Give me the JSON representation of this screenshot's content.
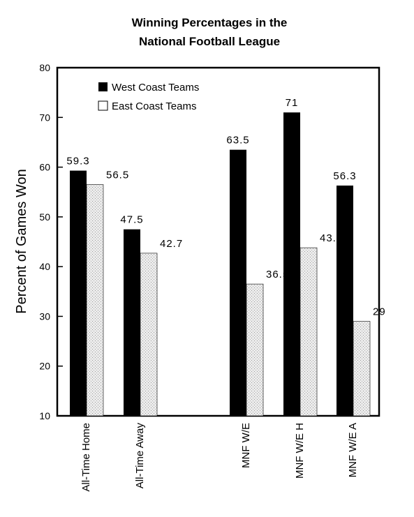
{
  "chart_data": {
    "type": "bar",
    "title": "Winning Percentages in the National Football League",
    "title_lines": [
      "Winning Percentages in the",
      "National Football League"
    ],
    "xlabel": "",
    "ylabel": "Percent of Games Won",
    "ylim": [
      10,
      80
    ],
    "yticks": [
      10,
      20,
      30,
      40,
      50,
      60,
      70,
      80
    ],
    "grid": false,
    "legend_position": "top-left",
    "categories": [
      "All-Time Home",
      "All-Time Away",
      "MNF W/E",
      "MNF W/E H",
      "MNF W/E A"
    ],
    "series": [
      {
        "name": "West Coast Teams",
        "values": [
          59.3,
          47.5,
          63.5,
          71,
          56.3
        ],
        "labels": [
          "59.3",
          "47.5",
          "63.5",
          "71",
          "56.3"
        ],
        "color": "#000000"
      },
      {
        "name": "East Coast Teams",
        "values": [
          56.5,
          42.7,
          36.5,
          43.8,
          29
        ],
        "labels": [
          "56.5",
          "42.7",
          "36.5",
          "43.8",
          "29"
        ],
        "color": "#e6e6e6"
      }
    ]
  }
}
